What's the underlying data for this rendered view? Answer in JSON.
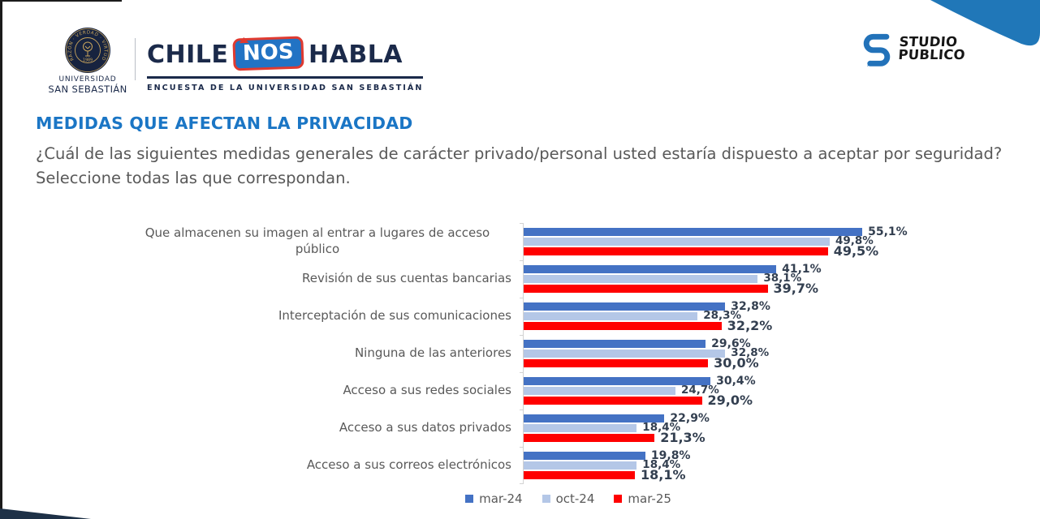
{
  "header": {
    "university": {
      "line1": "UNIVERSIDAD",
      "line2": "SAN SEBASTIÁN",
      "seal_motto": "RAZÓN · VERDAD · VIRTUD",
      "seal_year": "1989"
    },
    "logo": {
      "chile": "CHILE",
      "nos": "NOS",
      "habla": "HABLA",
      "tagline": "ENCUESTA DE LA UNIVERSIDAD SAN SEBASTIÁN"
    },
    "studio": {
      "line1": "STUDIO",
      "line2": "PUBLICO"
    }
  },
  "title": "MEDIDAS QUE AFECTAN LA PRIVACIDAD",
  "question": "¿Cuál de las siguientes medidas generales de carácter privado/personal usted estaría dispuesto a aceptar por seguridad? Seleccione todas las que correspondan.",
  "colors": {
    "title_blue": "#1B76C5",
    "navy": "#1B2A4A",
    "studio_blue": "#2272B9",
    "corner_blue": "#2077B8",
    "corner_navy": "#1E3147"
  },
  "chart_data": {
    "type": "bar",
    "orientation": "horizontal",
    "title": "MEDIDAS QUE AFECTAN LA PRIVACIDAD",
    "xlabel": "",
    "ylabel": "",
    "xlim": [
      0,
      68
    ],
    "grid": false,
    "legend_position": "bottom",
    "value_format": "percent-comma-decimal",
    "categories": [
      "Que almacenen su imagen al entrar a lugares de acceso público",
      "Revisión de sus cuentas bancarias",
      "Interceptación de sus comunicaciones",
      "Ninguna de las anteriores",
      "Acceso a sus redes sociales",
      "Acceso a sus datos privados",
      "Acceso a sus correos electrónicos"
    ],
    "series": [
      {
        "name": "mar-24",
        "color": "#4472C4",
        "values": [
          55.1,
          41.1,
          32.8,
          29.6,
          30.4,
          22.9,
          19.8
        ],
        "display_values": [
          "55,1%",
          "41,1%",
          "32,8%",
          "29,6%",
          "30,4%",
          "22,9%",
          "19,8%"
        ]
      },
      {
        "name": "oct-24",
        "color": "#B4C7E7",
        "values": [
          49.8,
          38.1,
          28.3,
          32.8,
          24.7,
          18.4,
          18.4
        ],
        "display_values": [
          "49,8%",
          "38,1%",
          "28,3%",
          "32,8%",
          "24,7%",
          "18,4%",
          "18,4%"
        ]
      },
      {
        "name": "mar-25",
        "color": "#FF0000",
        "values": [
          49.5,
          39.7,
          32.2,
          30.0,
          29.0,
          21.3,
          18.1
        ],
        "display_values": [
          "49,5%",
          "39,7%",
          "32,2%",
          "30,0%",
          "29,0%",
          "21,3%",
          "18,1%"
        ]
      }
    ]
  }
}
